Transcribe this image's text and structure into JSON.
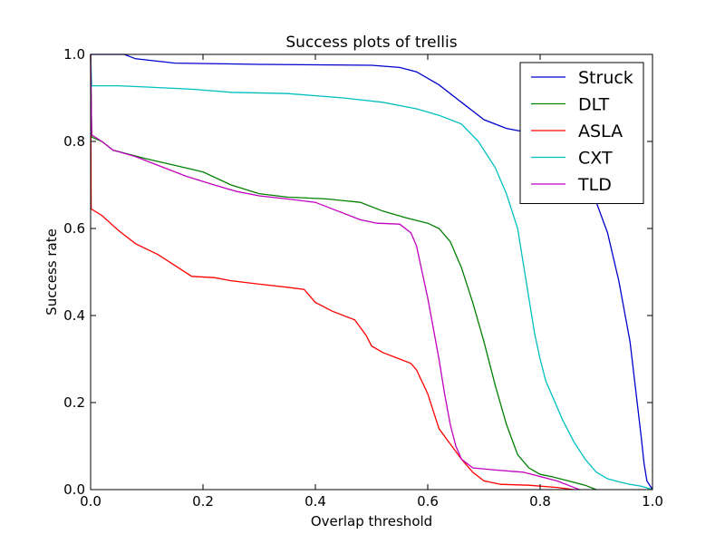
{
  "chart_data": {
    "type": "line",
    "title": "Success plots of trellis",
    "xlabel": "Overlap threshold",
    "ylabel": "Success rate",
    "xlim": [
      0,
      1
    ],
    "ylim": [
      0,
      1
    ],
    "xticks": [
      "0.0",
      "0.2",
      "0.4",
      "0.6",
      "0.8",
      "1.0"
    ],
    "yticks": [
      "0.0",
      "0.2",
      "0.4",
      "0.6",
      "0.8",
      "1.0"
    ],
    "grid": false,
    "legend_position": "top-right",
    "series": [
      {
        "name": "Struck",
        "color": "#0000cc",
        "points": [
          [
            0,
            1.0
          ],
          [
            0.06,
            1.0
          ],
          [
            0.08,
            0.99
          ],
          [
            0.15,
            0.98
          ],
          [
            0.3,
            0.977
          ],
          [
            0.5,
            0.975
          ],
          [
            0.55,
            0.97
          ],
          [
            0.58,
            0.96
          ],
          [
            0.62,
            0.93
          ],
          [
            0.66,
            0.89
          ],
          [
            0.7,
            0.85
          ],
          [
            0.74,
            0.83
          ],
          [
            0.78,
            0.82
          ],
          [
            0.81,
            0.81
          ],
          [
            0.84,
            0.78
          ],
          [
            0.86,
            0.75
          ],
          [
            0.88,
            0.71
          ],
          [
            0.9,
            0.66
          ],
          [
            0.92,
            0.59
          ],
          [
            0.94,
            0.48
          ],
          [
            0.96,
            0.34
          ],
          [
            0.97,
            0.23
          ],
          [
            0.98,
            0.12
          ],
          [
            0.985,
            0.06
          ],
          [
            0.99,
            0.02
          ],
          [
            1.0,
            0.0
          ]
        ]
      },
      {
        "name": "DLT",
        "color": "#008000",
        "points": [
          [
            0,
            1.0
          ],
          [
            0.002,
            0.81
          ],
          [
            0.02,
            0.8
          ],
          [
            0.04,
            0.78
          ],
          [
            0.1,
            0.76
          ],
          [
            0.15,
            0.745
          ],
          [
            0.2,
            0.73
          ],
          [
            0.25,
            0.7
          ],
          [
            0.3,
            0.68
          ],
          [
            0.35,
            0.672
          ],
          [
            0.42,
            0.668
          ],
          [
            0.48,
            0.66
          ],
          [
            0.52,
            0.64
          ],
          [
            0.56,
            0.625
          ],
          [
            0.6,
            0.612
          ],
          [
            0.62,
            0.6
          ],
          [
            0.64,
            0.57
          ],
          [
            0.66,
            0.51
          ],
          [
            0.68,
            0.43
          ],
          [
            0.7,
            0.34
          ],
          [
            0.72,
            0.24
          ],
          [
            0.74,
            0.15
          ],
          [
            0.76,
            0.08
          ],
          [
            0.78,
            0.05
          ],
          [
            0.8,
            0.035
          ],
          [
            0.82,
            0.03
          ],
          [
            0.85,
            0.02
          ],
          [
            0.88,
            0.01
          ],
          [
            0.9,
            0.0
          ]
        ]
      },
      {
        "name": "ASLA",
        "color": "#ff0000",
        "points": [
          [
            0,
            1.0
          ],
          [
            0.001,
            0.645
          ],
          [
            0.02,
            0.63
          ],
          [
            0.05,
            0.595
          ],
          [
            0.08,
            0.565
          ],
          [
            0.12,
            0.54
          ],
          [
            0.15,
            0.515
          ],
          [
            0.18,
            0.49
          ],
          [
            0.22,
            0.487
          ],
          [
            0.25,
            0.48
          ],
          [
            0.3,
            0.472
          ],
          [
            0.35,
            0.465
          ],
          [
            0.38,
            0.46
          ],
          [
            0.4,
            0.43
          ],
          [
            0.43,
            0.41
          ],
          [
            0.47,
            0.39
          ],
          [
            0.49,
            0.355
          ],
          [
            0.5,
            0.33
          ],
          [
            0.52,
            0.315
          ],
          [
            0.55,
            0.3
          ],
          [
            0.57,
            0.29
          ],
          [
            0.58,
            0.275
          ],
          [
            0.6,
            0.22
          ],
          [
            0.61,
            0.18
          ],
          [
            0.62,
            0.14
          ],
          [
            0.64,
            0.105
          ],
          [
            0.66,
            0.07
          ],
          [
            0.68,
            0.04
          ],
          [
            0.7,
            0.02
          ],
          [
            0.73,
            0.012
          ],
          [
            0.78,
            0.01
          ],
          [
            0.83,
            0.005
          ],
          [
            0.86,
            0.0
          ]
        ]
      },
      {
        "name": "CXT",
        "color": "#00bfbf",
        "points": [
          [
            0,
            1.0
          ],
          [
            0.002,
            0.928
          ],
          [
            0.05,
            0.928
          ],
          [
            0.1,
            0.925
          ],
          [
            0.18,
            0.92
          ],
          [
            0.25,
            0.913
          ],
          [
            0.35,
            0.91
          ],
          [
            0.45,
            0.9
          ],
          [
            0.52,
            0.89
          ],
          [
            0.58,
            0.875
          ],
          [
            0.62,
            0.86
          ],
          [
            0.66,
            0.84
          ],
          [
            0.69,
            0.8
          ],
          [
            0.72,
            0.74
          ],
          [
            0.74,
            0.68
          ],
          [
            0.76,
            0.6
          ],
          [
            0.77,
            0.52
          ],
          [
            0.78,
            0.44
          ],
          [
            0.79,
            0.36
          ],
          [
            0.8,
            0.3
          ],
          [
            0.81,
            0.25
          ],
          [
            0.82,
            0.22
          ],
          [
            0.84,
            0.16
          ],
          [
            0.86,
            0.11
          ],
          [
            0.88,
            0.07
          ],
          [
            0.9,
            0.04
          ],
          [
            0.92,
            0.025
          ],
          [
            0.94,
            0.018
          ],
          [
            0.96,
            0.012
          ],
          [
            0.98,
            0.008
          ],
          [
            1.0,
            0.0
          ]
        ]
      },
      {
        "name": "TLD",
        "color": "#bf00bf",
        "points": [
          [
            0,
            1.0
          ],
          [
            0.002,
            0.815
          ],
          [
            0.02,
            0.8
          ],
          [
            0.04,
            0.78
          ],
          [
            0.08,
            0.765
          ],
          [
            0.12,
            0.745
          ],
          [
            0.17,
            0.72
          ],
          [
            0.22,
            0.7
          ],
          [
            0.26,
            0.685
          ],
          [
            0.3,
            0.675
          ],
          [
            0.35,
            0.668
          ],
          [
            0.4,
            0.66
          ],
          [
            0.44,
            0.64
          ],
          [
            0.48,
            0.62
          ],
          [
            0.51,
            0.612
          ],
          [
            0.55,
            0.61
          ],
          [
            0.57,
            0.59
          ],
          [
            0.58,
            0.56
          ],
          [
            0.59,
            0.5
          ],
          [
            0.6,
            0.44
          ],
          [
            0.61,
            0.37
          ],
          [
            0.62,
            0.3
          ],
          [
            0.63,
            0.22
          ],
          [
            0.64,
            0.15
          ],
          [
            0.65,
            0.1
          ],
          [
            0.66,
            0.07
          ],
          [
            0.68,
            0.05
          ],
          [
            0.72,
            0.045
          ],
          [
            0.77,
            0.04
          ],
          [
            0.8,
            0.03
          ],
          [
            0.83,
            0.02
          ],
          [
            0.85,
            0.01
          ],
          [
            0.87,
            0.0
          ]
        ]
      }
    ]
  }
}
